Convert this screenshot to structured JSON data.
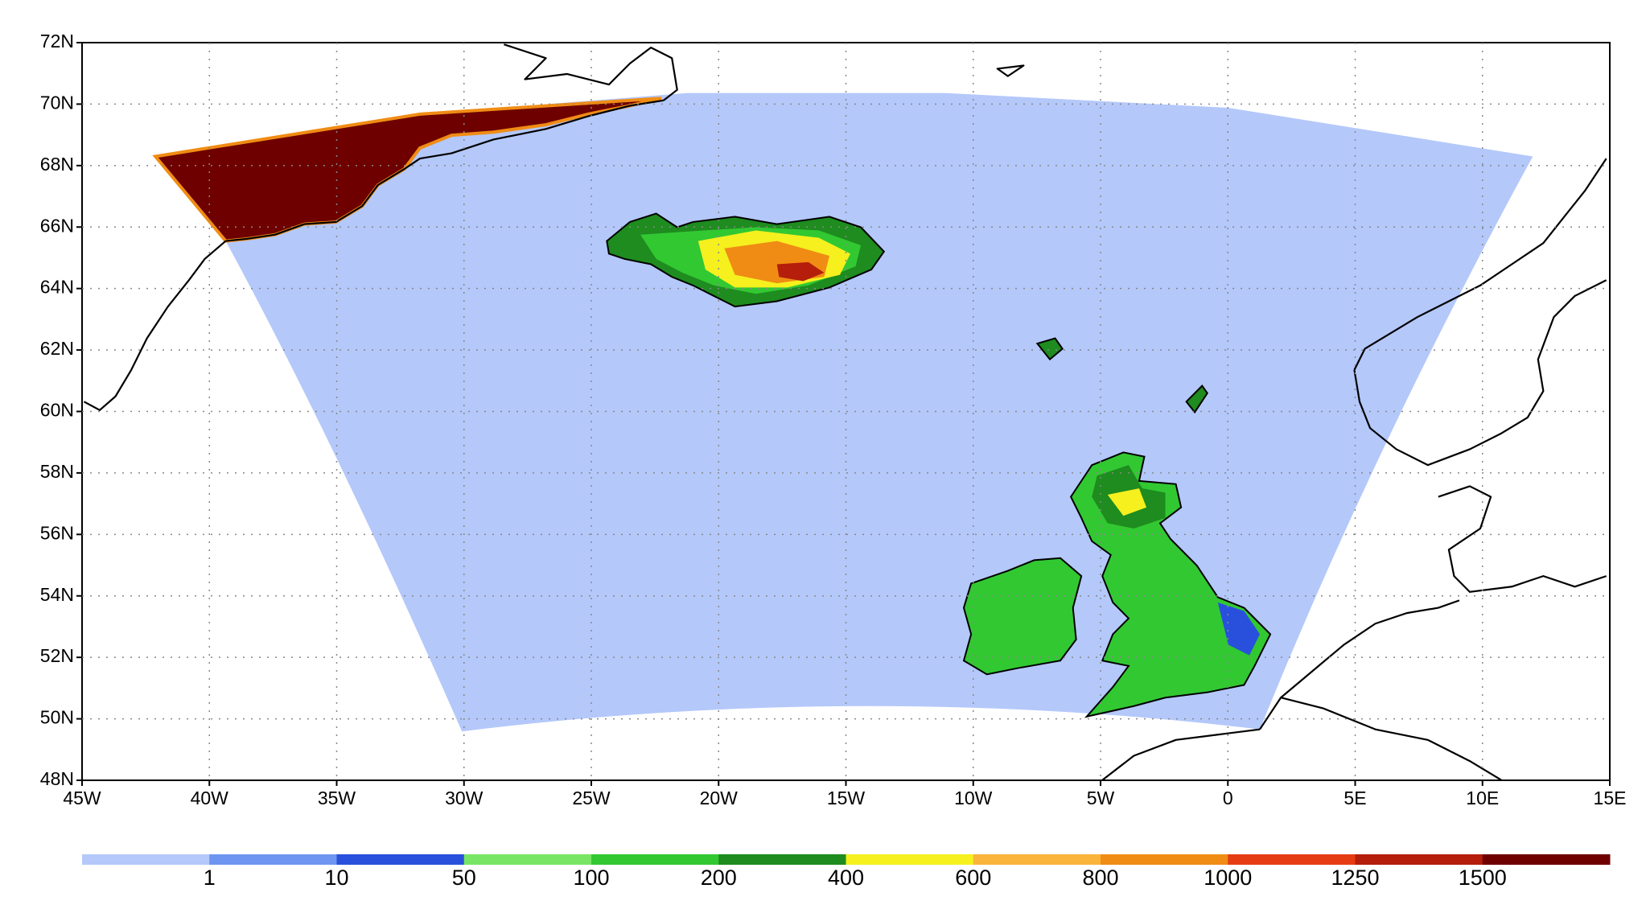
{
  "map": {
    "lon_ticks": [
      {
        "value": -45,
        "label": "45W"
      },
      {
        "value": -40,
        "label": "40W"
      },
      {
        "value": -35,
        "label": "35W"
      },
      {
        "value": -30,
        "label": "30W"
      },
      {
        "value": -25,
        "label": "25W"
      },
      {
        "value": -20,
        "label": "20W"
      },
      {
        "value": -15,
        "label": "15W"
      },
      {
        "value": -10,
        "label": "10W"
      },
      {
        "value": -5,
        "label": "5W"
      },
      {
        "value": 0,
        "label": "0"
      },
      {
        "value": 5,
        "label": "5E"
      },
      {
        "value": 10,
        "label": "10E"
      },
      {
        "value": 15,
        "label": "15E"
      }
    ],
    "lat_ticks": [
      {
        "value": 48,
        "label": "48N"
      },
      {
        "value": 50,
        "label": "50N"
      },
      {
        "value": 52,
        "label": "52N"
      },
      {
        "value": 54,
        "label": "54N"
      },
      {
        "value": 56,
        "label": "56N"
      },
      {
        "value": 58,
        "label": "58N"
      },
      {
        "value": 60,
        "label": "60N"
      },
      {
        "value": 62,
        "label": "62N"
      },
      {
        "value": 64,
        "label": "64N"
      },
      {
        "value": 66,
        "label": "66N"
      },
      {
        "value": 68,
        "label": "68N"
      },
      {
        "value": 70,
        "label": "70N"
      },
      {
        "value": 72,
        "label": "72N"
      }
    ],
    "grid": true,
    "colorbar": {
      "levels": [
        1,
        10,
        50,
        100,
        200,
        400,
        600,
        800,
        1000,
        1250,
        1500
      ],
      "colors": [
        "#b4c8fa",
        "#6e96f0",
        "#2850dc",
        "#78e664",
        "#32c832",
        "#1e8c1e",
        "#f5f01e",
        "#fab43c",
        "#f08c14",
        "#e63c14",
        "#b41e0a",
        "#6e0000"
      ]
    }
  }
}
